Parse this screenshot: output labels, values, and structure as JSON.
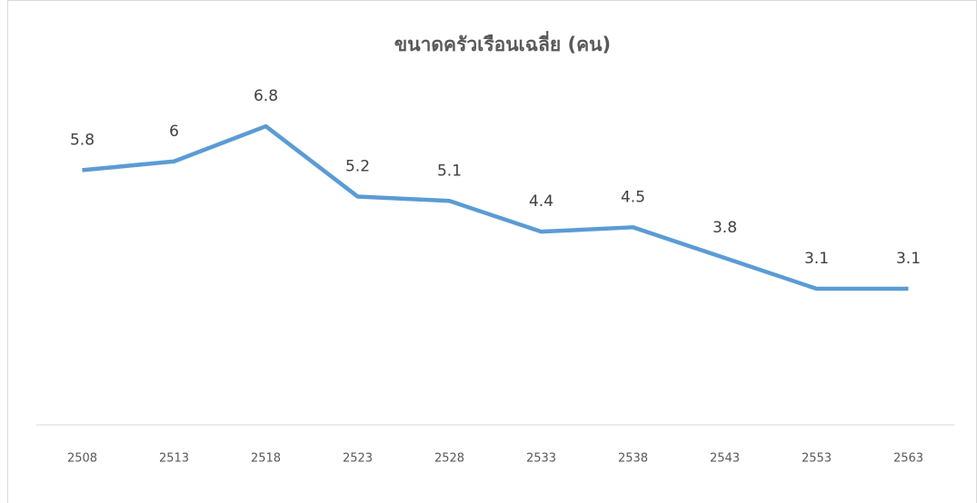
{
  "chart_data": {
    "type": "line",
    "title": "ขนาดครัวเรือนเฉลี่ย (คน)",
    "categories": [
      "2508",
      "2513",
      "2518",
      "2523",
      "2528",
      "2533",
      "2538",
      "2543",
      "2553",
      "2563"
    ],
    "series": [
      {
        "name": "ขนาดครัวเรือนเฉลี่ย",
        "color": "#5b9bd5",
        "values": [
          5.8,
          6,
          6.8,
          5.2,
          5.1,
          4.4,
          4.5,
          3.8,
          3.1,
          3.1
        ]
      }
    ],
    "ylim": [
      0,
      8
    ]
  }
}
